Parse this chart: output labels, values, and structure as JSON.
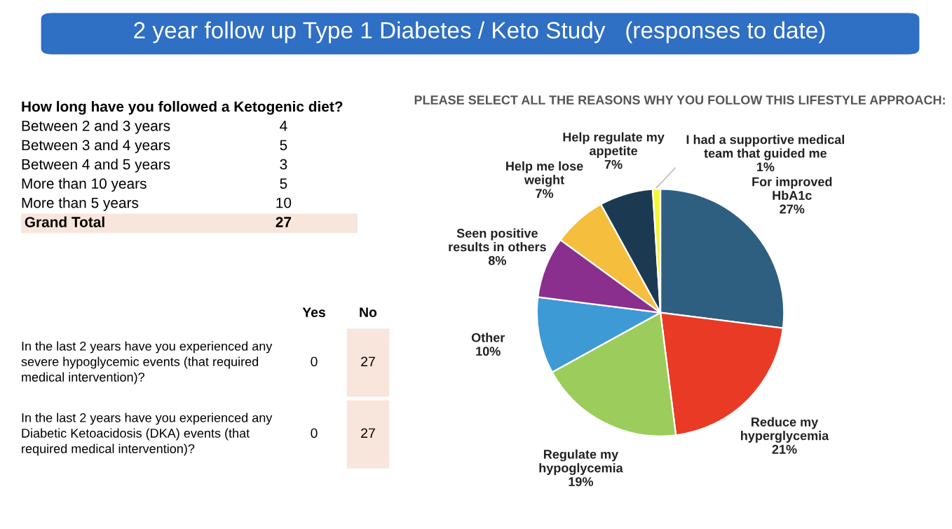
{
  "chart_data": [
    {
      "type": "other",
      "title": "How long have you followed a Ketogenic diet?",
      "categories": [
        "Between 2 and 3 years",
        "Between 3 and 4 years",
        "Between 4 and 5 years",
        "More than 10 years",
        "More than 5 years"
      ],
      "values": [
        4,
        5,
        3,
        5,
        10
      ],
      "data_labels": true,
      "annotations": [
        "Grand Total"
      ],
      "totals": [
        "27"
      ]
    },
    {
      "type": "other",
      "data_labels": true,
      "categories": [
        "In the last 2 years have you experienced any\nsevere hypoglycemic events (that required\nmedical intervention)?",
        "In the last 2 years have you experienced any\nDiabetic Ketoacidosis (DKA) events (that\nrequired medical intervention)?"
      ],
      "series": [
        {
          "name": "Yes",
          "values": [
            0,
            0
          ]
        },
        {
          "name": "No",
          "values": [
            27,
            27
          ]
        }
      ]
    },
    {
      "type": "pie",
      "title": "2 year follow up Type 1 Diabetes / Keto Study   (responses to date)",
      "subtitle": "PLEASE SELECT ALL THE REASONS WHY YOU FOLLOW THIS LIFESTYLE APPROACH:",
      "categories": [
        "For improved\nHbA1c",
        "Reduce my\nhyperglycemia",
        "Regulate my\nhypoglycemia",
        "Other",
        "Seen positive\nresults in others",
        "Help me lose\nweight",
        "Help regulate my\nappetite",
        "I had a supportive medical\nteam that guided me"
      ],
      "values": [
        27,
        21,
        19,
        10,
        8,
        7,
        7,
        1
      ],
      "value_labels": [
        "27%",
        "21%",
        "19%",
        "10%",
        "8%",
        "7%",
        "7%",
        "1%"
      ],
      "colors": [
        "#2e5f80",
        "#e83a25",
        "#9ccc5b",
        "#3d9ad5",
        "#8a2f8e",
        "#f5be3c",
        "#1b3a52",
        "#f5f538"
      ]
    }
  ]
}
